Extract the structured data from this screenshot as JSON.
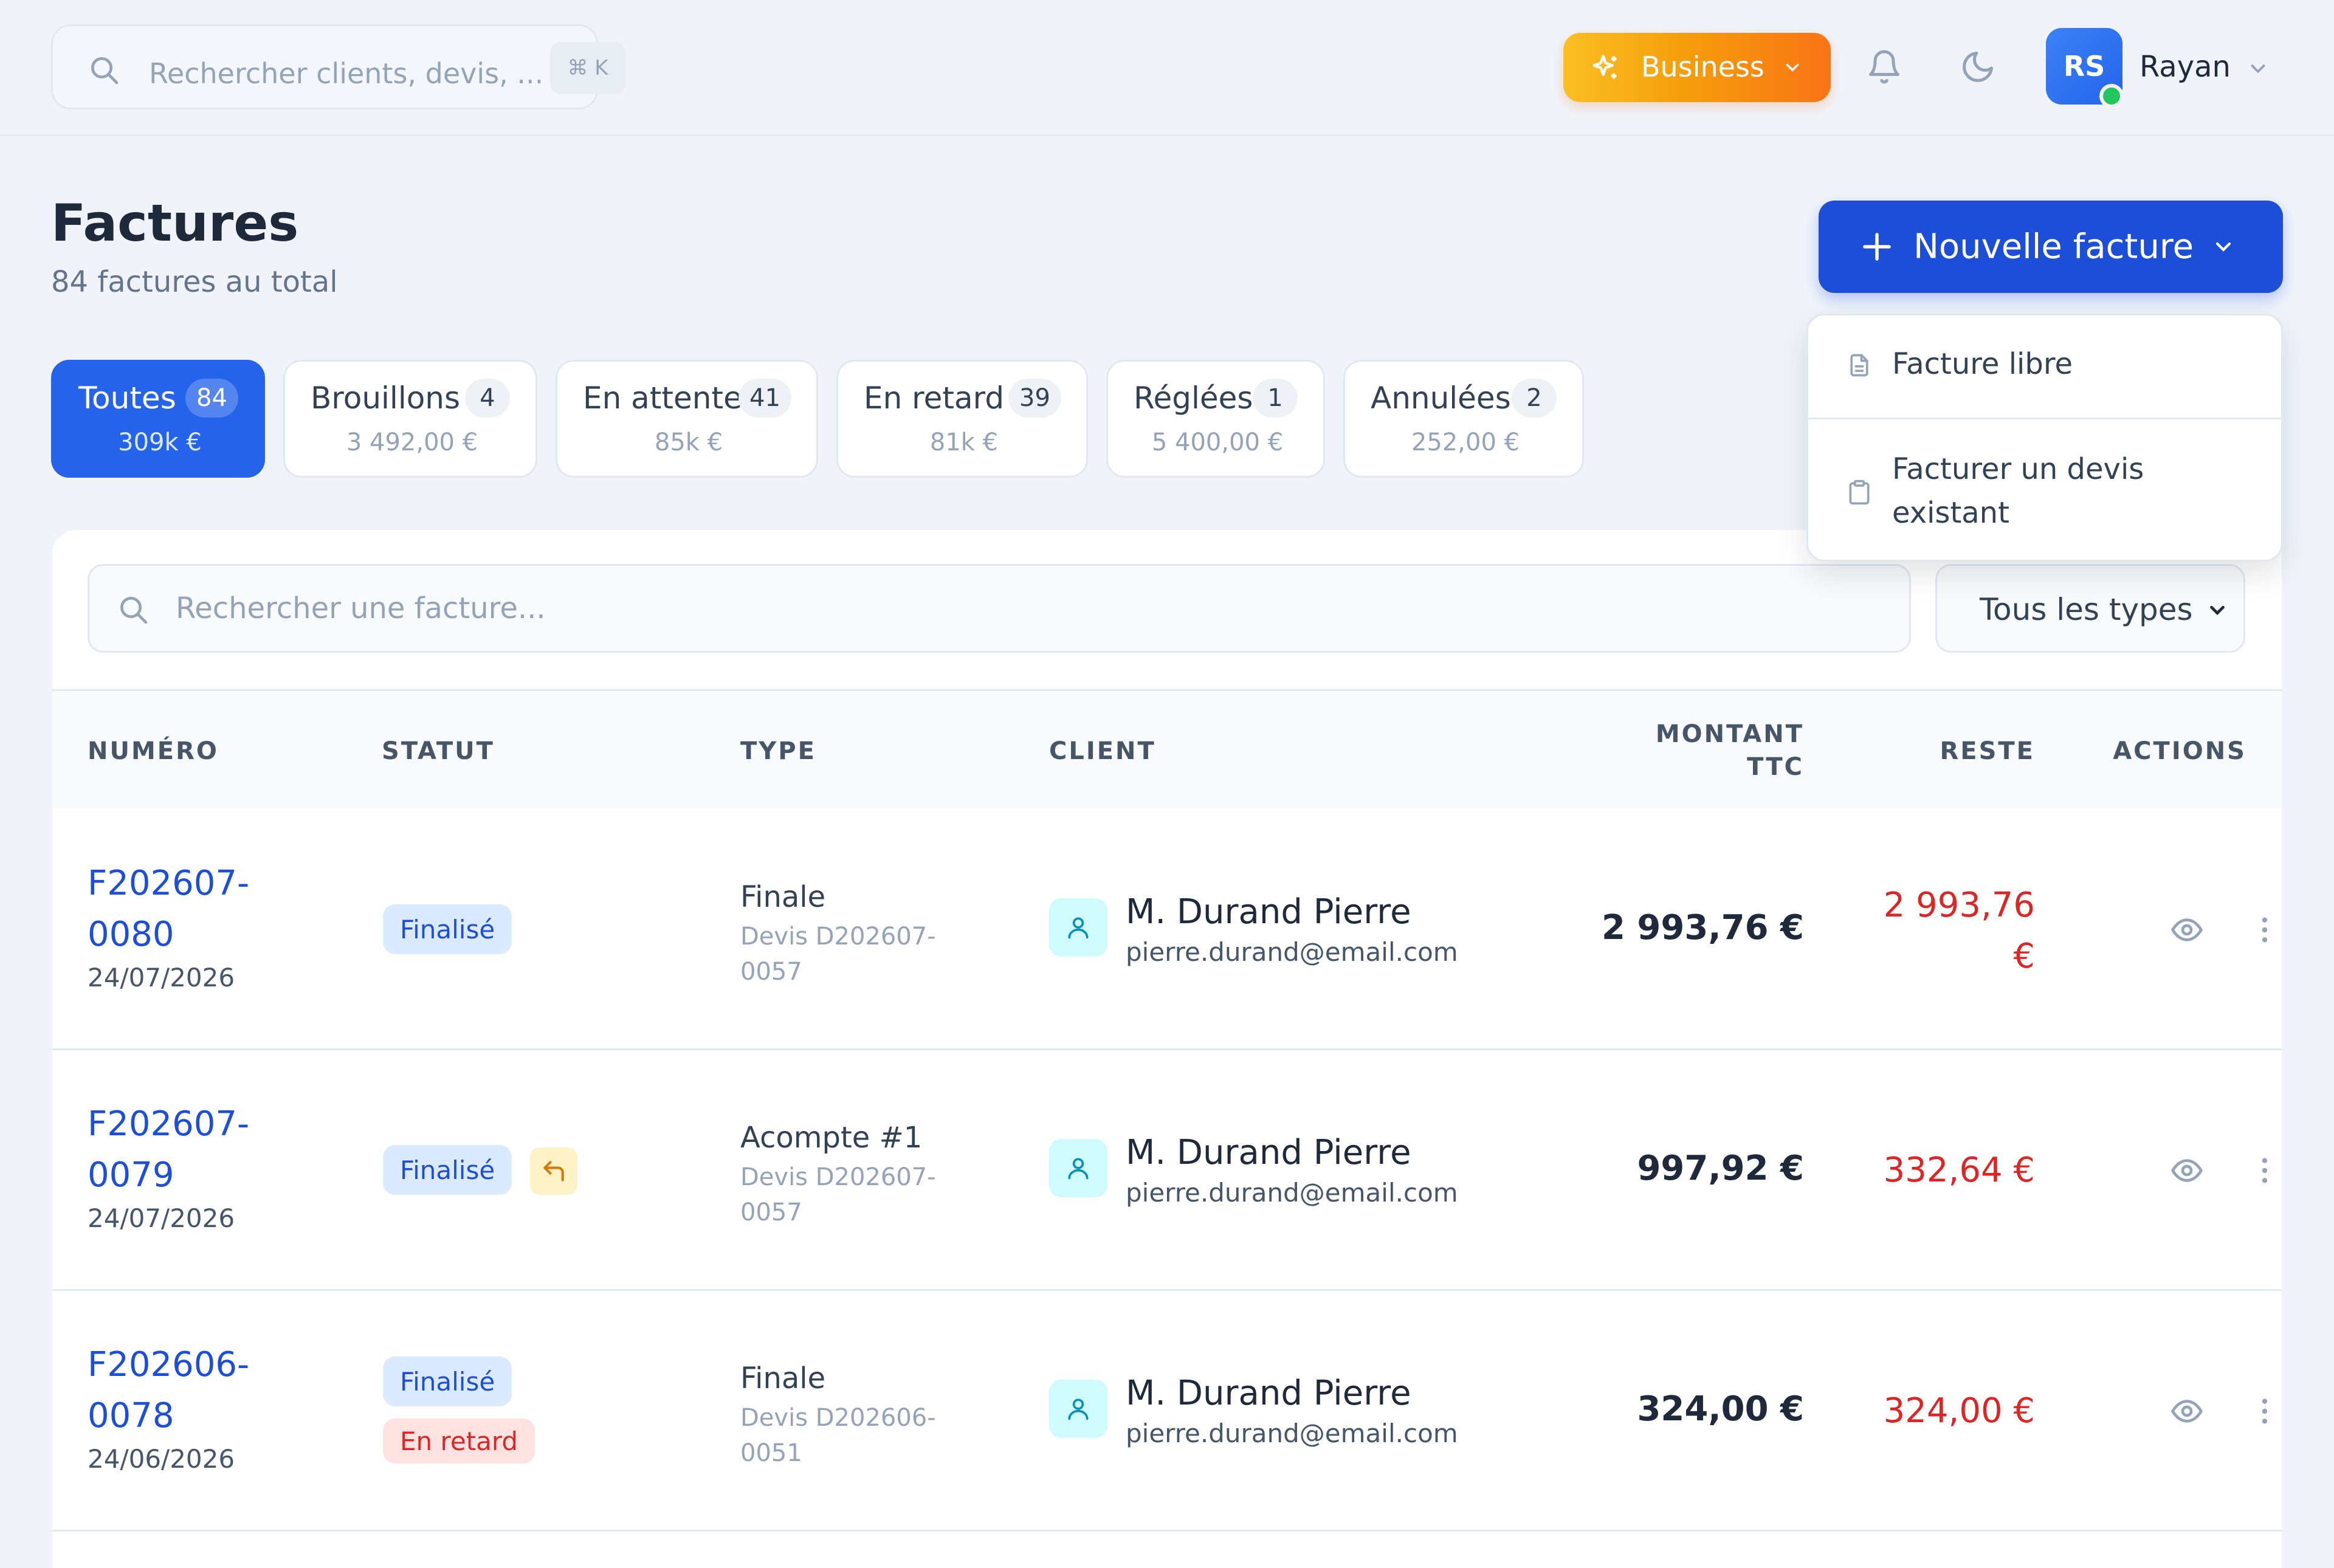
{
  "header": {
    "search_placeholder": "Rechercher clients, devis, ...",
    "search_shortcut": "⌘ K",
    "plan_label": "Business",
    "user_initials": "RS",
    "user_name": "Rayan"
  },
  "page": {
    "title": "Factures",
    "subtitle": "84 factures au total",
    "new_button": "Nouvelle facture"
  },
  "dropdown": {
    "items": [
      "Facture libre",
      "Facturer un devis",
      "existant"
    ]
  },
  "tabs": [
    {
      "label": "Toutes",
      "count": "84",
      "amount": "309k €",
      "active": true
    },
    {
      "label": "Brouillons",
      "count": "4",
      "amount": "3 492,00 €"
    },
    {
      "label": "En attente",
      "count": "41",
      "amount": "85k €"
    },
    {
      "label": "En retard",
      "count": "39",
      "amount": "81k €"
    },
    {
      "label": "Réglées",
      "count": "1",
      "amount": "5 400,00 €"
    },
    {
      "label": "Annulées",
      "count": "2",
      "amount": "252,00 €"
    }
  ],
  "table": {
    "search_placeholder": "Rechercher une facture...",
    "type_filter": "Tous les types",
    "columns": {
      "numero": "NUMÉRO",
      "statut": "STATUT",
      "type": "TYPE",
      "client": "CLIENT",
      "montant_1": "MONTANT",
      "montant_2": "TTC",
      "reste": "RESTE",
      "actions": "ACTIONS"
    },
    "rows": [
      {
        "num_1": "F202607-",
        "num_2": "0080",
        "date": "24/07/2026",
        "status": "Finalisé",
        "type": "Finale",
        "type_ref_1": "Devis D202607-",
        "type_ref_2": "0057",
        "client": "M. Durand Pierre",
        "email": "pierre.durand@email.com",
        "amount": "2 993,76 €",
        "reste_1": "2 993,76",
        "reste_2": "€"
      },
      {
        "num_1": "F202607-",
        "num_2": "0079",
        "date": "24/07/2026",
        "status": "Finalisé",
        "type": "Acompte #1",
        "type_ref_1": "Devis D202607-",
        "type_ref_2": "0057",
        "client": "M. Durand Pierre",
        "email": "pierre.durand@email.com",
        "amount": "997,92 €",
        "reste_1": "332,64 €"
      },
      {
        "num_1": "F202606-",
        "num_2": "0078",
        "date": "24/06/2026",
        "status": "Finalisé",
        "status_2": "En retard",
        "type": "Finale",
        "type_ref_1": "Devis D202606-",
        "type_ref_2": "0051",
        "client": "M. Durand Pierre",
        "email": "pierre.durand@email.com",
        "amount": "324,00 €",
        "reste_1": "324,00 €"
      }
    ]
  }
}
